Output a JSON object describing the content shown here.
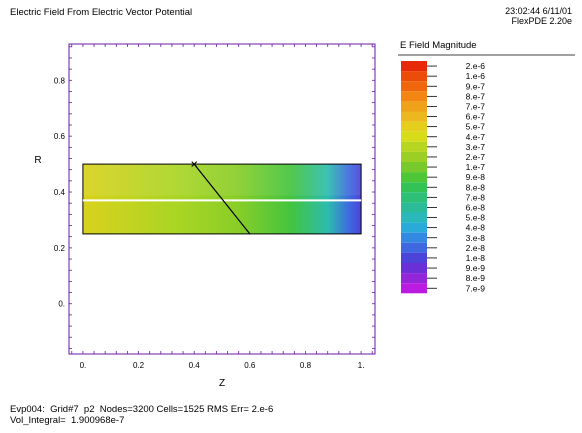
{
  "header": {
    "title": "Electric Field From Electric Vector Potential",
    "timestamp": "23:02:44 6/11/01",
    "version": "FlexPDE 2.20e"
  },
  "footer": {
    "line1": "Evp004:  Grid#7  p2  Nodes=3200 Cells=1525 RMS Err= 2.e-6",
    "line2": "Vol_Integral=  1.900968e-7"
  },
  "chart_data": {
    "type": "heatmap",
    "title": "Electric Field From Electric Vector Potential",
    "xlabel": "Z",
    "ylabel": "R",
    "xlim": [
      -0.05,
      1.05
    ],
    "ylim": [
      -0.18,
      0.93
    ],
    "x_ticks": [
      "0.",
      "0.2",
      "0.4",
      "0.6",
      "0.8",
      "1."
    ],
    "x_tick_values": [
      0,
      0.2,
      0.4,
      0.6,
      0.8,
      1.0
    ],
    "y_ticks": [
      "0.",
      "0.2",
      "0.4",
      "0.6",
      "0.8"
    ],
    "y_tick_values": [
      0,
      0.2,
      0.4,
      0.6,
      0.8
    ],
    "domain": {
      "z": [
        0,
        1
      ],
      "r": [
        0.25,
        0.5
      ]
    },
    "overlay_lines": [
      {
        "name": "white",
        "color": "#ffffff",
        "points": [
          [
            0,
            0.37
          ],
          [
            1,
            0.37
          ]
        ]
      },
      {
        "name": "black",
        "color": "#000000",
        "points": [
          [
            0.4,
            0.5
          ],
          [
            0.6,
            0.25
          ]
        ]
      }
    ],
    "legend": {
      "title": "E Field Magnitude",
      "levels": [
        "2.e-6",
        "1.e-6",
        "9.e-7",
        "8.e-7",
        "7.e-7",
        "6.e-7",
        "5.e-7",
        "4.e-7",
        "3.e-7",
        "2.e-7",
        "1.e-7",
        "9.e-8",
        "8.e-8",
        "7.e-8",
        "6.e-8",
        "5.e-8",
        "4.e-8",
        "3.e-8",
        "2.e-8",
        "1.e-8",
        "9.e-9",
        "8.e-9",
        "7.e-9"
      ],
      "colors": [
        "#e6290a",
        "#ec4c0a",
        "#f0660c",
        "#f38512",
        "#f0a11a",
        "#edb71f",
        "#e5cf1d",
        "#d6dc18",
        "#b6d622",
        "#9ccf25",
        "#77c92c",
        "#4fc635",
        "#33c255",
        "#2ec077",
        "#2cbb98",
        "#2ab8bb",
        "#2aaad8",
        "#3389e2",
        "#3f67e0",
        "#4c44d8",
        "#6a2fd6",
        "#9326d9",
        "#bb1ae0"
      ]
    },
    "colormap_anchors": [
      {
        "z": 0.0,
        "color": "#d9d21c"
      },
      {
        "z": 0.35,
        "color": "#a8d524"
      },
      {
        "z": 0.55,
        "color": "#8ace27"
      },
      {
        "z": 0.75,
        "color": "#43c440"
      },
      {
        "z": 0.88,
        "color": "#2cbcae"
      },
      {
        "z": 0.96,
        "color": "#3f67e0"
      },
      {
        "z": 1.0,
        "color": "#4c44d8"
      }
    ]
  }
}
